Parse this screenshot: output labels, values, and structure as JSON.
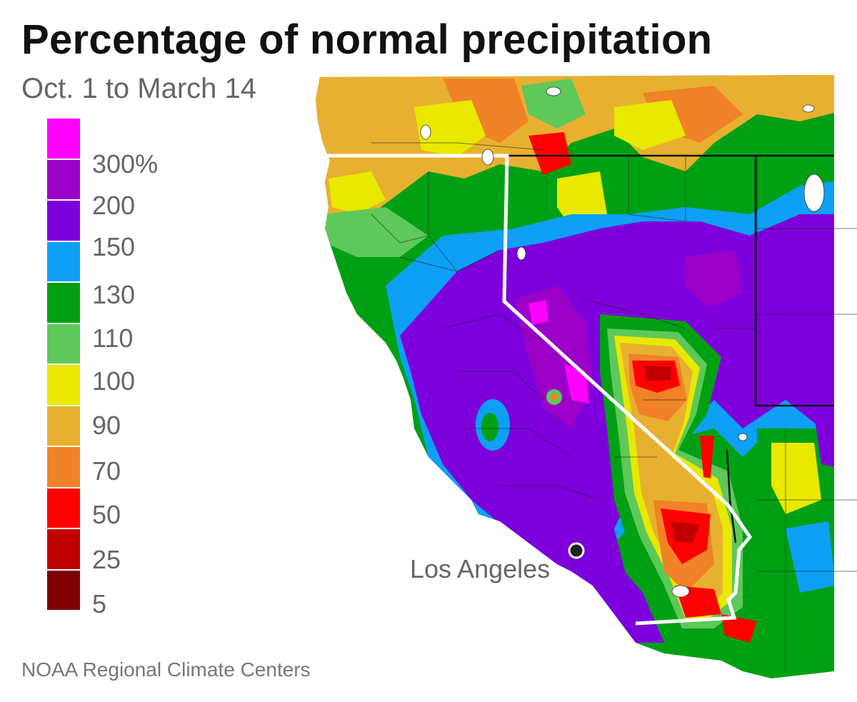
{
  "title": "Percentage of normal precipitation",
  "subtitle": "Oct. 1 to March 14",
  "legend": {
    "colors": [
      "#ff00ff",
      "#9c00c8",
      "#7d00dc",
      "#0da0f5",
      "#00a014",
      "#5ec85a",
      "#e8e800",
      "#e8b030",
      "#f08228",
      "#ff0000",
      "#c00000",
      "#800000"
    ],
    "labels": [
      "300%",
      "200",
      "150",
      "130",
      "110",
      "100",
      "90",
      "70",
      "50",
      "25",
      "5"
    ]
  },
  "map": {
    "city": "Los Angeles"
  },
  "source": "NOAA Regional Climate Centers"
}
